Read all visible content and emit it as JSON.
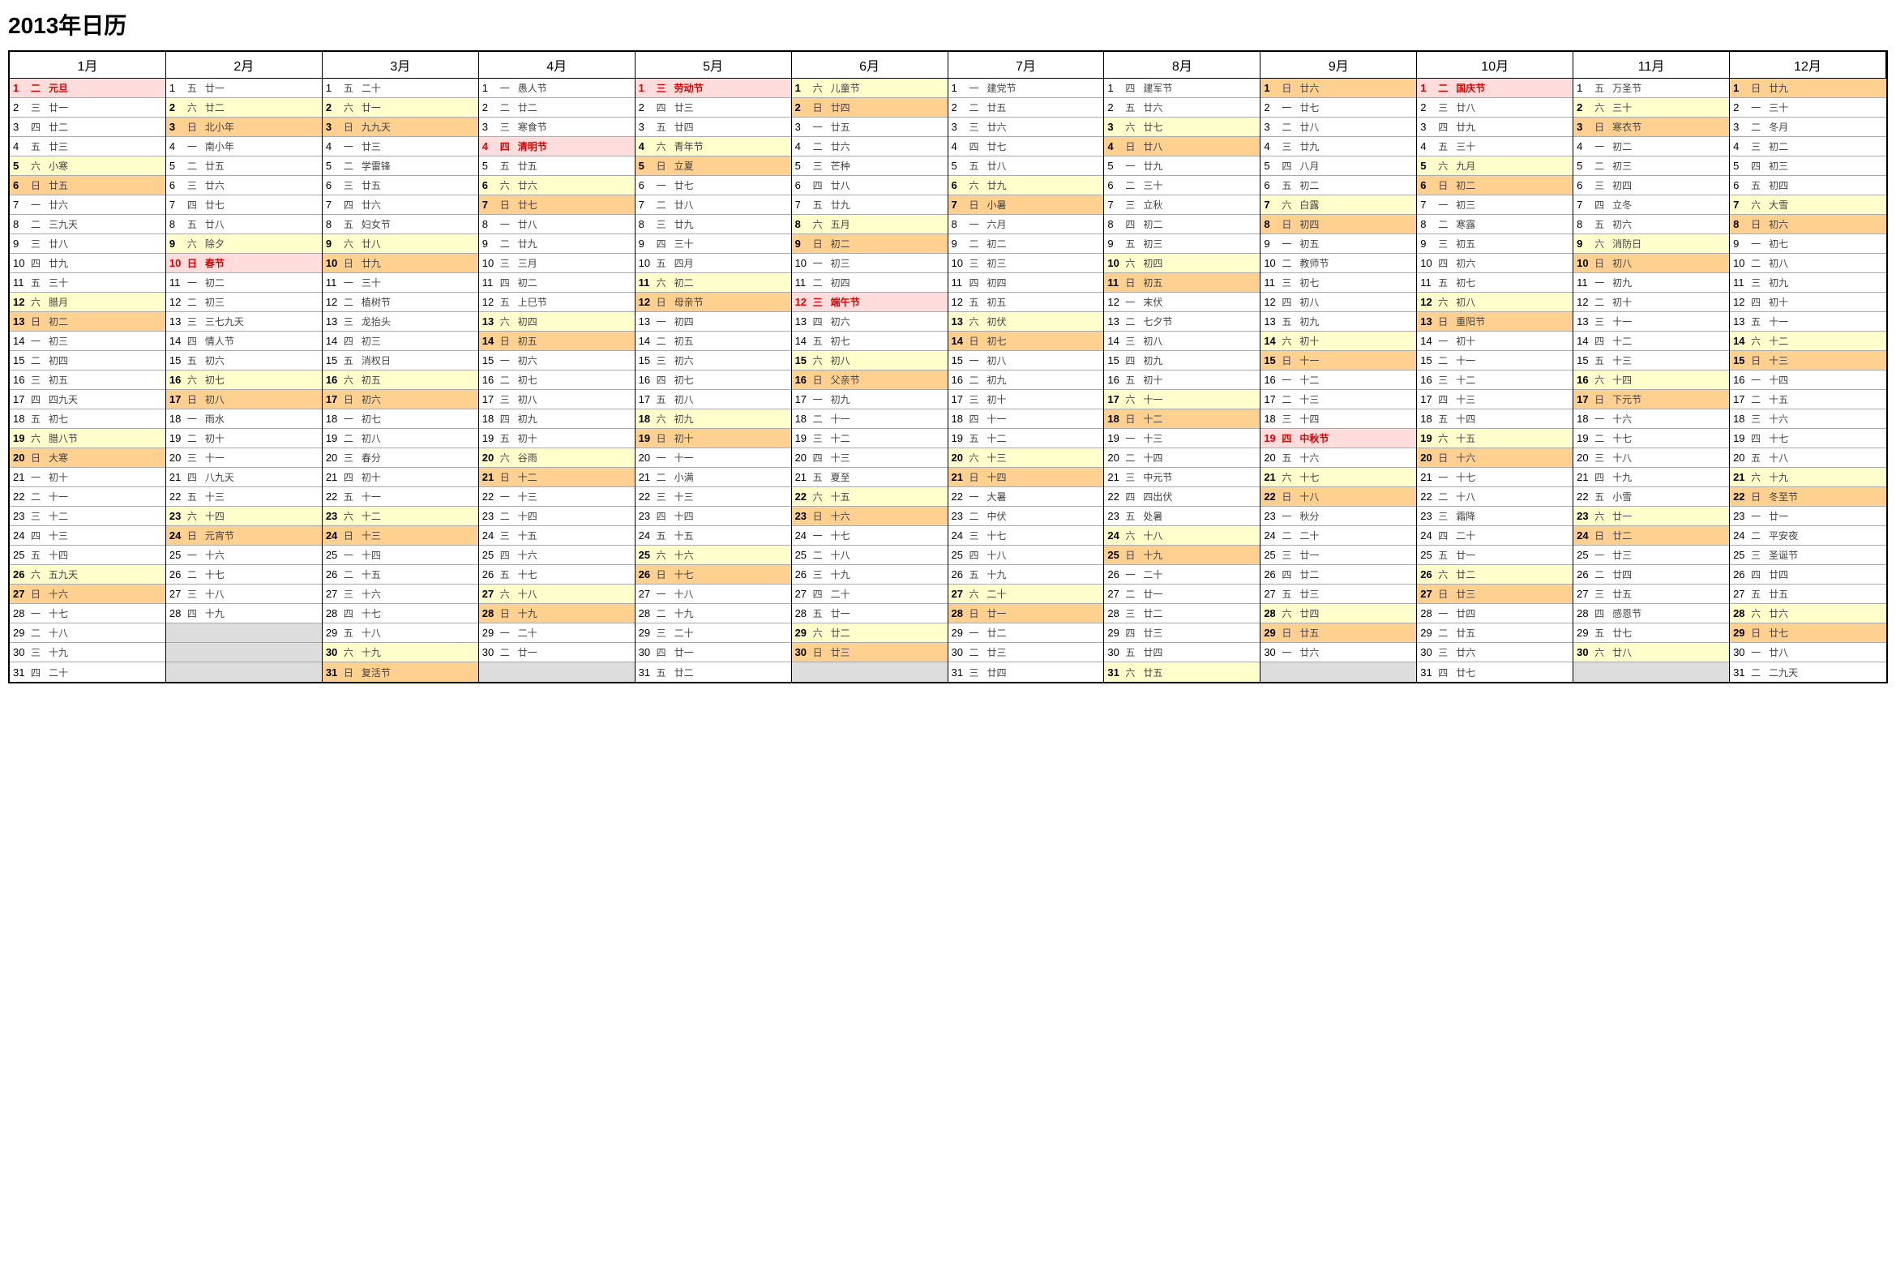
{
  "title": "2013年日历",
  "weekdays": [
    "日",
    "一",
    "二",
    "三",
    "四",
    "五",
    "六"
  ],
  "months": [
    "1月",
    "2月",
    "3月",
    "4月",
    "5月",
    "6月",
    "7月",
    "8月",
    "9月",
    "10月",
    "11月",
    "12月"
  ],
  "monthDays": [
    31,
    28,
    31,
    30,
    31,
    30,
    31,
    31,
    30,
    31,
    30,
    31
  ],
  "startWeekday": [
    2,
    5,
    5,
    1,
    3,
    6,
    1,
    4,
    0,
    2,
    5,
    0
  ],
  "colors": {
    "sat_bg": "#ffffcc",
    "sun_bg": "#ffd090",
    "hol_bg": "#ffdddd",
    "empty_bg": "#dddddd",
    "red_text": "#dd0000"
  },
  "lunar": {
    "0": [
      "元旦",
      "廿一",
      "廿二",
      "廿三",
      "小寒",
      "廿五",
      "廿六",
      "三九天",
      "廿八",
      "廿九",
      "三十",
      "腊月",
      "初二",
      "初三",
      "初四",
      "初五",
      "四九天",
      "初七",
      "腊八节",
      "大寒",
      "初十",
      "十一",
      "十二",
      "十三",
      "十四",
      "五九天",
      "十六",
      "十七",
      "十八",
      "十九",
      "二十"
    ],
    "1": [
      "廿一",
      "廿二",
      "北小年",
      "南小年",
      "廿五",
      "廿六",
      "廿七",
      "廿八",
      "除夕",
      "春节",
      "初二",
      "初三",
      "三七九天",
      "情人节",
      "初六",
      "初七",
      "初八",
      "雨水",
      "初十",
      "十一",
      "八九天",
      "十三",
      "十四",
      "元宵节",
      "十六",
      "十七",
      "十八",
      "十九"
    ],
    "2": [
      "二十",
      "廿一",
      "九九天",
      "廿三",
      "学雷锋",
      "廿五",
      "廿六",
      "妇女节",
      "廿八",
      "廿九",
      "三十",
      "植树节",
      "龙抬头",
      "初三",
      "消权日",
      "初五",
      "初六",
      "初七",
      "初八",
      "春分",
      "初十",
      "十一",
      "十二",
      "十三",
      "十四",
      "十五",
      "十六",
      "十七",
      "十八",
      "十九",
      "复活节"
    ],
    "3": [
      "愚人节",
      "廿二",
      "寒食节",
      "清明节",
      "廿五",
      "廿六",
      "廿七",
      "廿八",
      "廿九",
      "三月",
      "初二",
      "上巳节",
      "初四",
      "初五",
      "初六",
      "初七",
      "初八",
      "初九",
      "初十",
      "谷雨",
      "十二",
      "十三",
      "十四",
      "十五",
      "十六",
      "十七",
      "十八",
      "十九",
      "二十",
      "廿一"
    ],
    "4": [
      "劳动节",
      "廿三",
      "廿四",
      "青年节",
      "立夏",
      "廿七",
      "廿八",
      "廿九",
      "三十",
      "四月",
      "初二",
      "母亲节",
      "初四",
      "初五",
      "初六",
      "初七",
      "初八",
      "初九",
      "初十",
      "十一",
      "小满",
      "十三",
      "十四",
      "十五",
      "十六",
      "十七",
      "十八",
      "十九",
      "二十",
      "廿一",
      "廿二"
    ],
    "5": [
      "儿童节",
      "廿四",
      "廿五",
      "廿六",
      "芒种",
      "廿八",
      "廿九",
      "五月",
      "初二",
      "初三",
      "初四",
      "端午节",
      "初六",
      "初七",
      "初八",
      "父亲节",
      "初九",
      "十一",
      "十二",
      "十三",
      "夏至",
      "十五",
      "十六",
      "十七",
      "十八",
      "十九",
      "二十",
      "廿一",
      "廿二",
      "廿三"
    ],
    "6": [
      "建党节",
      "廿五",
      "廿六",
      "廿七",
      "廿八",
      "廿九",
      "小暑",
      "六月",
      "初二",
      "初三",
      "初四",
      "初五",
      "初伏",
      "初七",
      "初八",
      "初九",
      "初十",
      "十一",
      "十二",
      "十三",
      "十四",
      "大暑",
      "中伏",
      "十七",
      "十八",
      "十九",
      "二十",
      "廿一",
      "廿二",
      "廿三",
      "廿四"
    ],
    "7": [
      "建军节",
      "廿六",
      "廿七",
      "廿八",
      "廿九",
      "三十",
      "立秋",
      "初二",
      "初三",
      "初四",
      "初五",
      "末伏",
      "七夕节",
      "初八",
      "初九",
      "初十",
      "十一",
      "十二",
      "十三",
      "十四",
      "中元节",
      "四出伏",
      "处暑",
      "十八",
      "十九",
      "二十",
      "廿一",
      "廿二",
      "廿三",
      "廿四",
      "廿五"
    ],
    "8": [
      "廿六",
      "廿七",
      "廿八",
      "廿九",
      "八月",
      "初二",
      "白露",
      "初四",
      "初五",
      "教师节",
      "初七",
      "初八",
      "初九",
      "初十",
      "十一",
      "十二",
      "十三",
      "十四",
      "中秋节",
      "十六",
      "十七",
      "十八",
      "秋分",
      "二十",
      "廿一",
      "廿二",
      "廿三",
      "廿四",
      "廿五",
      "廿六"
    ],
    "9": [
      "国庆节",
      "廿八",
      "廿九",
      "三十",
      "九月",
      "初二",
      "初三",
      "寒露",
      "初五",
      "初六",
      "初七",
      "初八",
      "重阳节",
      "初十",
      "十一",
      "十二",
      "十三",
      "十四",
      "十五",
      "十六",
      "十七",
      "十八",
      "霜降",
      "二十",
      "廿一",
      "廿二",
      "廿三",
      "廿四",
      "廿五",
      "廿六",
      "廿七"
    ],
    "10": [
      "万圣节",
      "三十",
      "寒衣节",
      "初二",
      "初三",
      "初四",
      "立冬",
      "初六",
      "消防日",
      "初八",
      "初九",
      "初十",
      "十一",
      "十二",
      "十三",
      "十四",
      "下元节",
      "十六",
      "十七",
      "十八",
      "十九",
      "小雪",
      "廿一",
      "廿二",
      "廿三",
      "廿四",
      "廿五",
      "感恩节",
      "廿七",
      "廿八"
    ],
    "11": [
      "廿九",
      "三十",
      "冬月",
      "初二",
      "初三",
      "初四",
      "大雪",
      "初六",
      "初七",
      "初八",
      "初九",
      "初十",
      "十一",
      "十二",
      "十三",
      "十四",
      "十五",
      "十六",
      "十七",
      "十八",
      "十九",
      "冬至节",
      "廿一",
      "平安夜",
      "圣诞节",
      "廿四",
      "廿五",
      "廿六",
      "廿七",
      "廿八",
      "二九天"
    ]
  },
  "holidays": {
    "0-1": true,
    "1-10": true,
    "3-4": true,
    "4-1": true,
    "5-12": true,
    "8-19": true,
    "9-1": true
  }
}
